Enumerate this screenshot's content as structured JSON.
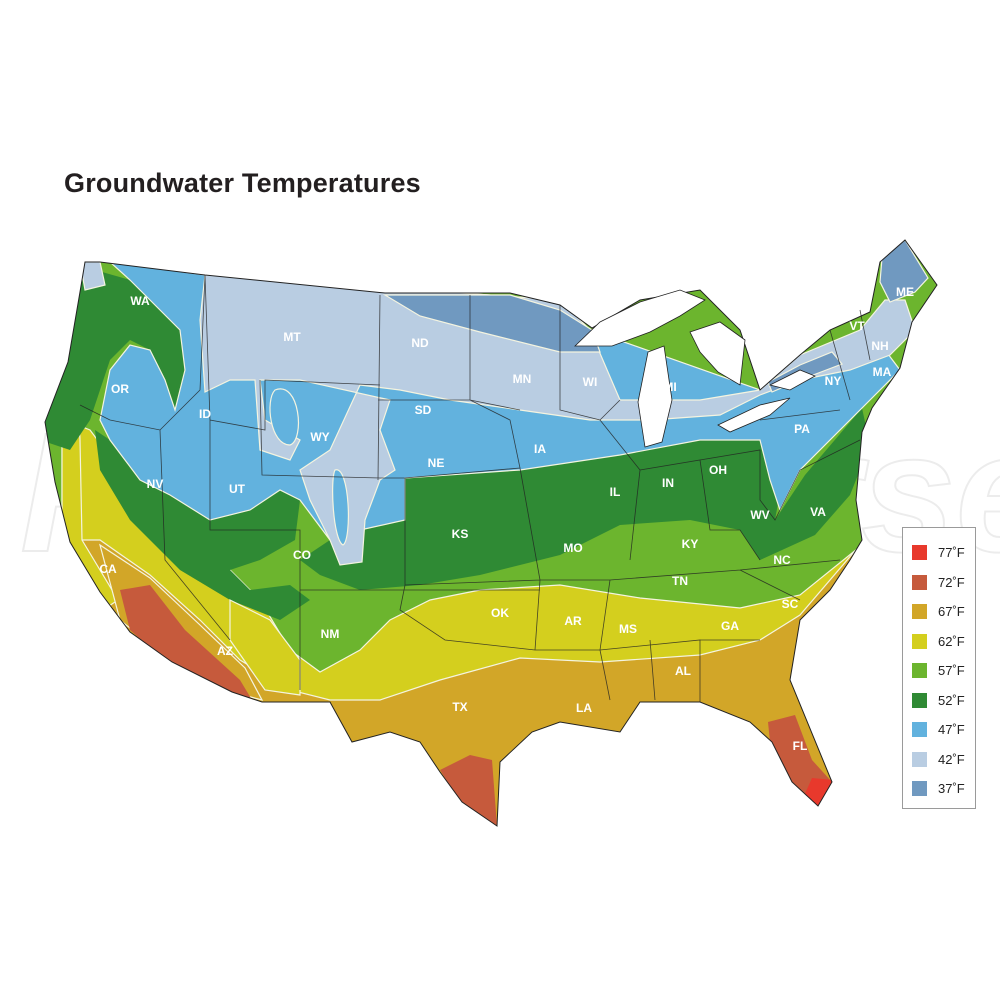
{
  "title": "Groundwater Temperatures",
  "watermark": "RevUniverse",
  "legend": [
    {
      "label": "77˚F",
      "color": "#e8392c"
    },
    {
      "label": "72˚F",
      "color": "#c65a3c"
    },
    {
      "label": "67˚F",
      "color": "#d2a628"
    },
    {
      "label": "62˚F",
      "color": "#d4cf1e"
    },
    {
      "label": "57˚F",
      "color": "#6cb52e"
    },
    {
      "label": "52˚F",
      "color": "#2f8a34"
    },
    {
      "label": "47˚F",
      "color": "#62b2de"
    },
    {
      "label": "42˚F",
      "color": "#b9cde2"
    },
    {
      "label": "37˚F",
      "color": "#7099c0"
    }
  ],
  "states": [
    "WA",
    "OR",
    "ID",
    "MT",
    "ND",
    "MN",
    "WI",
    "MI",
    "NY",
    "VT",
    "NH",
    "ME",
    "MA",
    "PA",
    "SD",
    "WY",
    "NE",
    "IA",
    "IL",
    "IN",
    "OH",
    "NV",
    "UT",
    "CO",
    "KS",
    "MO",
    "KY",
    "WV",
    "VA",
    "NC",
    "TN",
    "SC",
    "GA",
    "AR",
    "OK",
    "MS",
    "AL",
    "NM",
    "AZ",
    "CA",
    "TX",
    "LA",
    "FL"
  ]
}
